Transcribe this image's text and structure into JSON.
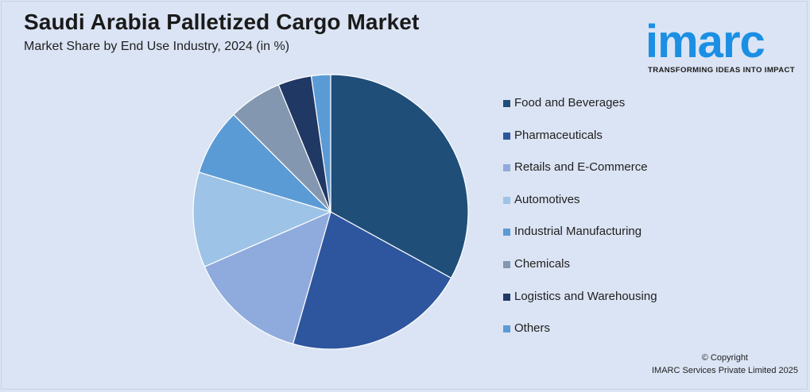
{
  "header": {
    "title": "Saudi Arabia Palletized Cargo Market",
    "subtitle": "Market Share by End Use Industry, 2024 (in %)"
  },
  "logo": {
    "word": "imarc",
    "tagline": "TRANSFORMING IDEAS INTO IMPACT",
    "color": "#1b8fe3"
  },
  "footer": {
    "copyright": "© Copyright",
    "company": "IMARC Services Private Limited 2025"
  },
  "chart_data": {
    "type": "pie",
    "title": "Saudi Arabia Palletized Cargo Market",
    "subtitle": "Market Share by End Use Industry, 2024 (in %)",
    "legend_placement": "right",
    "start_angle_deg": 0,
    "direction": "clockwise",
    "slices": [
      {
        "label": "Food and Beverages",
        "value": 33.6,
        "color": "#1f4e79"
      },
      {
        "label": "Pharmaceuticals",
        "value": 21.8,
        "color": "#2e569e"
      },
      {
        "label": "Retails and E-Commerce",
        "value": 14.3,
        "color": "#8faadc"
      },
      {
        "label": "Automotives",
        "value": 11.4,
        "color": "#9dc3e6"
      },
      {
        "label": "Industrial Manufacturing",
        "value": 8.0,
        "color": "#5b9bd5"
      },
      {
        "label": "Chemicals",
        "value": 6.4,
        "color": "#8497b0"
      },
      {
        "label": "Logistics and Warehousing",
        "value": 4.0,
        "color": "#203864"
      },
      {
        "label": "Others",
        "value": 2.3,
        "color": "#5b9bd5"
      }
    ]
  }
}
